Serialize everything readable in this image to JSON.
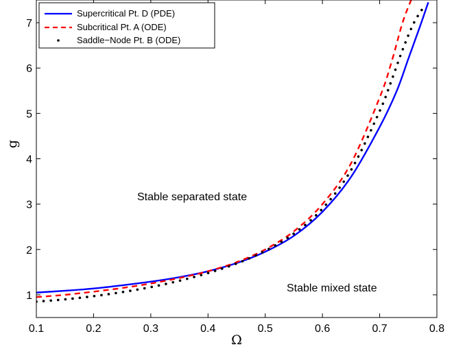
{
  "chart_data": {
    "type": "line",
    "title": "",
    "xlabel": "Ω",
    "ylabel": "g",
    "xlim": [
      0.1,
      0.8
    ],
    "ylim": [
      0.5,
      7.5
    ],
    "xticks": [
      "0.1",
      "0.2",
      "0.3",
      "0.4",
      "0.5",
      "0.6",
      "0.7",
      "0.8"
    ],
    "yticks": [
      "1",
      "2",
      "3",
      "4",
      "5",
      "6",
      "7"
    ],
    "grid": false,
    "legend_position": "top-left",
    "series": [
      {
        "name": "Supercritical Pt. D (PDE)",
        "style": "solid",
        "color": "#0000ff",
        "x": [
          0.1,
          0.15,
          0.2,
          0.25,
          0.3,
          0.35,
          0.4,
          0.45,
          0.5,
          0.55,
          0.6,
          0.65,
          0.7,
          0.73,
          0.75,
          0.77,
          0.785
        ],
        "y": [
          1.05,
          1.09,
          1.14,
          1.21,
          1.29,
          1.39,
          1.52,
          1.7,
          1.95,
          2.3,
          2.83,
          3.6,
          4.7,
          5.5,
          6.2,
          6.9,
          7.45
        ]
      },
      {
        "name": "Subcritical Pt. A (ODE)",
        "style": "dashed",
        "color": "#ff0000",
        "x": [
          0.1,
          0.15,
          0.2,
          0.25,
          0.3,
          0.35,
          0.4,
          0.45,
          0.5,
          0.55,
          0.6,
          0.65,
          0.7,
          0.72,
          0.74,
          0.755
        ],
        "y": [
          0.95,
          1.0,
          1.07,
          1.15,
          1.25,
          1.37,
          1.52,
          1.72,
          2.0,
          2.4,
          3.0,
          3.9,
          5.35,
          6.1,
          7.0,
          7.5
        ]
      },
      {
        "name": "Saddle−Node Pt. B (ODE)",
        "style": "dotted",
        "color": "#000000",
        "x": [
          0.1,
          0.15,
          0.2,
          0.25,
          0.3,
          0.35,
          0.4,
          0.45,
          0.5,
          0.55,
          0.6,
          0.65,
          0.7,
          0.72,
          0.74,
          0.76,
          0.78
        ],
        "y": [
          0.85,
          0.9,
          0.97,
          1.06,
          1.17,
          1.31,
          1.48,
          1.69,
          1.97,
          2.35,
          2.9,
          3.75,
          5.05,
          5.7,
          6.4,
          7.0,
          7.4
        ]
      }
    ],
    "annotations": [
      {
        "text": "Stable separated state",
        "x": 0.42,
        "y": 3.25
      },
      {
        "text": "Stable mixed state",
        "x": 0.66,
        "y": 0.98
      }
    ]
  }
}
